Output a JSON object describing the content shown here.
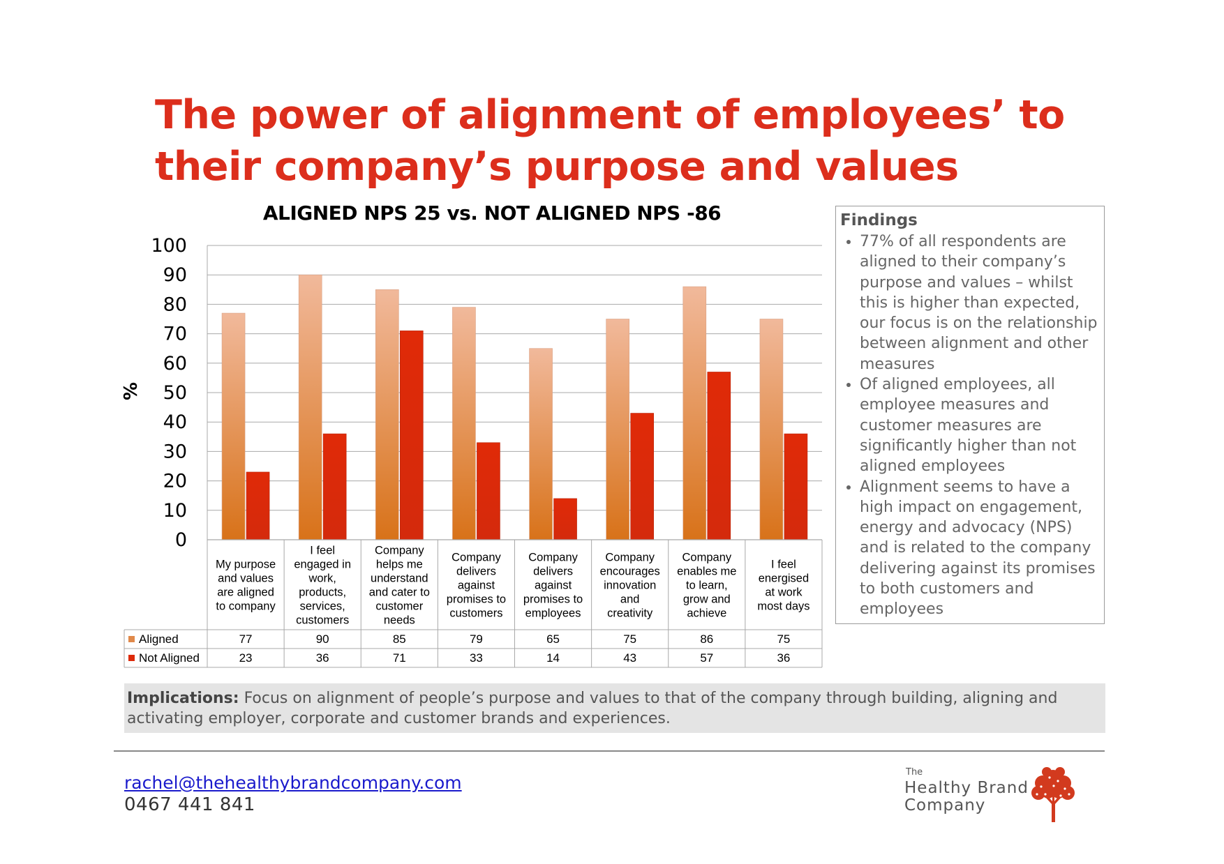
{
  "page": {
    "title_line1": "The power of alignment of employees’ to",
    "title_line2": "their company’s purpose and values"
  },
  "chart_data": {
    "type": "bar",
    "title": "ALIGNED NPS 25 vs. NOT ALIGNED NPS -86",
    "ylabel": "%",
    "xlabel": "",
    "ylim": [
      0,
      100
    ],
    "yticks": [
      "0",
      "10",
      "20",
      "30",
      "40",
      "50",
      "60",
      "70",
      "80",
      "90",
      "100"
    ],
    "grid": true,
    "legend": "data-table",
    "categories": [
      [
        "My purpose",
        "and values",
        "are aligned",
        "to company"
      ],
      [
        "I feel",
        "engaged in",
        "work,",
        "products,",
        "services,",
        "customers"
      ],
      [
        "Company",
        "helps me",
        "understand",
        "and cater to",
        "customer",
        "needs"
      ],
      [
        "Company",
        "delivers",
        "against",
        "promises to",
        "customers"
      ],
      [
        "Company",
        "delivers",
        "against",
        "promises to",
        "employees"
      ],
      [
        "Company",
        "encourages",
        "innovation",
        "and",
        "creativity"
      ],
      [
        "Company",
        "enables me",
        "to learn,",
        "grow and",
        "achieve"
      ],
      [
        "I feel",
        "energised",
        "at work",
        "most days"
      ]
    ],
    "series": [
      {
        "name": "Aligned",
        "values": [
          77,
          90,
          85,
          79,
          65,
          75,
          86,
          75
        ],
        "color": "#e0894a"
      },
      {
        "name": "Not Aligned",
        "values": [
          23,
          36,
          71,
          33,
          14,
          43,
          57,
          36
        ],
        "color": "#dd2a0a"
      }
    ]
  },
  "findings": {
    "heading": "Findings",
    "bullets": [
      "77% of all respondents are aligned to their company’s purpose and values – whilst this is higher than expected, our focus is on the relationship between alignment and other measures",
      "Of aligned employees, all employee measures and customer measures are significantly higher than not aligned employees",
      "Alignment seems to have a high impact on engagement, energy and advocacy (NPS) and is related to the company delivering against its promises to both customers and employees"
    ]
  },
  "implications": {
    "label": "Implications:",
    "text": "Focus on alignment of people’s purpose and values to that of the company through building, aligning and activating employer, corporate and customer brands and experiences."
  },
  "contact": {
    "email": "rachel@thehealthybrandcompany.com",
    "phone": "0467 441 841"
  },
  "logo": {
    "small": "The",
    "line1": "Healthy Brand",
    "line2": "Company",
    "icon": "tree-icon",
    "color": "#d23a1e"
  }
}
